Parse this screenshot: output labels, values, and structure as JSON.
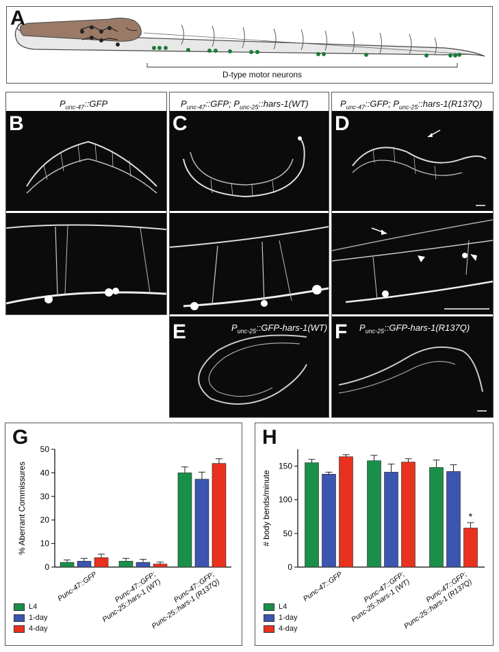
{
  "panel_a": {
    "letter": "A",
    "bracket_label": "D-type motor neurons"
  },
  "panel_b": {
    "letter": "B",
    "caption_main": "P",
    "caption_sub": "unc-47",
    "caption_rest": "::GFP"
  },
  "panel_c": {
    "letter": "C",
    "caption_p1": "P",
    "caption_s1": "unc-47",
    "caption_r1": "::GFP; P",
    "caption_s2": "unc-25",
    "caption_r2": "::hars-1(WT)"
  },
  "panel_d": {
    "letter": "D",
    "caption_p1": "P",
    "caption_s1": "unc-47",
    "caption_r1": "::GFP; P",
    "caption_s2": "unc-25",
    "caption_r2": "::hars-1(R137Q)"
  },
  "panel_e": {
    "letter": "E",
    "caption_p": "P",
    "caption_s": "unc-25",
    "caption_r": "::GFP-hars-1(WT)"
  },
  "panel_f": {
    "letter": "F",
    "caption_p": "P",
    "caption_s": "unc-25",
    "caption_r": "::GFP-hars-1(R137Q)"
  },
  "colors": {
    "L4": "#1a8f4a",
    "day1": "#3b55b0",
    "day4": "#e8321f",
    "gut": "#9a7a66",
    "neuron": "#1c7a3c"
  },
  "chart_data": [
    {
      "letter": "G",
      "type": "bar",
      "ylabel": "% Aberrant Commissures",
      "ylim": [
        0,
        50
      ],
      "yticks": [
        "0",
        "10",
        "20",
        "30",
        "40",
        "50"
      ],
      "categories": [
        [
          "Punc-47::GFP"
        ],
        [
          "Punc-47::GFP;",
          "Punc-25::hars-1 (WT)"
        ],
        [
          "Punc-47::GFP;",
          "Punc-25::hars-1 (R137Q)"
        ]
      ],
      "series": [
        {
          "name": "L4",
          "values": [
            2,
            2.5,
            40
          ],
          "errors": [
            1.0,
            1.2,
            2.5
          ]
        },
        {
          "name": "1-day",
          "values": [
            2.5,
            2,
            37.3
          ],
          "errors": [
            1.2,
            1.3,
            3.0
          ]
        },
        {
          "name": "4-day",
          "values": [
            4,
            1.3,
            44
          ],
          "errors": [
            1.5,
            0.8,
            2.0
          ]
        }
      ]
    },
    {
      "letter": "H",
      "type": "bar",
      "ylabel": "# body bends/minute",
      "ylim": [
        0,
        175
      ],
      "yticks": [
        "0",
        "50",
        "100",
        "150"
      ],
      "categories": [
        [
          "Punc-47::GFP"
        ],
        [
          "Punc-47::GFP;",
          "Punc-25::hars-1 (WT)"
        ],
        [
          "Punc-47::GFP;",
          "Punc-25::hars-1 (R137Q)"
        ]
      ],
      "series": [
        {
          "name": "L4",
          "values": [
            155,
            158,
            148
          ],
          "errors": [
            5,
            8,
            11
          ]
        },
        {
          "name": "1-day",
          "values": [
            138,
            141,
            142
          ],
          "errors": [
            3,
            12,
            10
          ]
        },
        {
          "name": "4-day",
          "values": [
            164,
            156,
            58
          ],
          "errors": [
            3,
            5,
            8
          ]
        }
      ],
      "annotation": "*"
    }
  ],
  "legend": [
    {
      "label": "L4",
      "color": "#1a8f4a"
    },
    {
      "label": "1-day",
      "color": "#3b55b0"
    },
    {
      "label": "4-day",
      "color": "#e8321f"
    }
  ]
}
